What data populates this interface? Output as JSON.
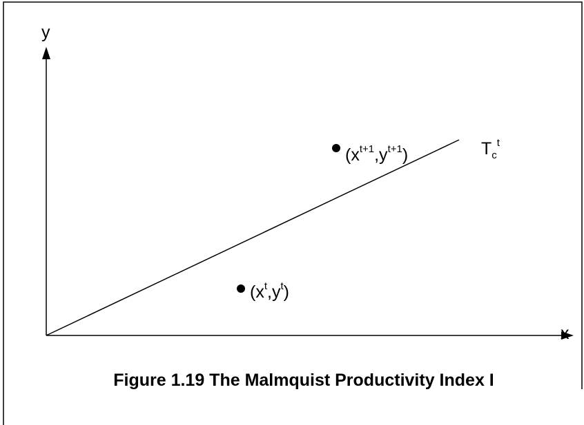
{
  "axes": {
    "y_label": "y",
    "x_label": "x"
  },
  "frontier": {
    "label": [
      "T",
      "c",
      "t"
    ]
  },
  "points": [
    {
      "label": [
        "(x",
        "t+1",
        ",y",
        "t+1",
        ")"
      ]
    },
    {
      "label": [
        "(x",
        "t",
        ",y",
        "t",
        ")"
      ]
    }
  ],
  "caption": "Figure 1.19 The Malmquist Productivity Index I"
}
